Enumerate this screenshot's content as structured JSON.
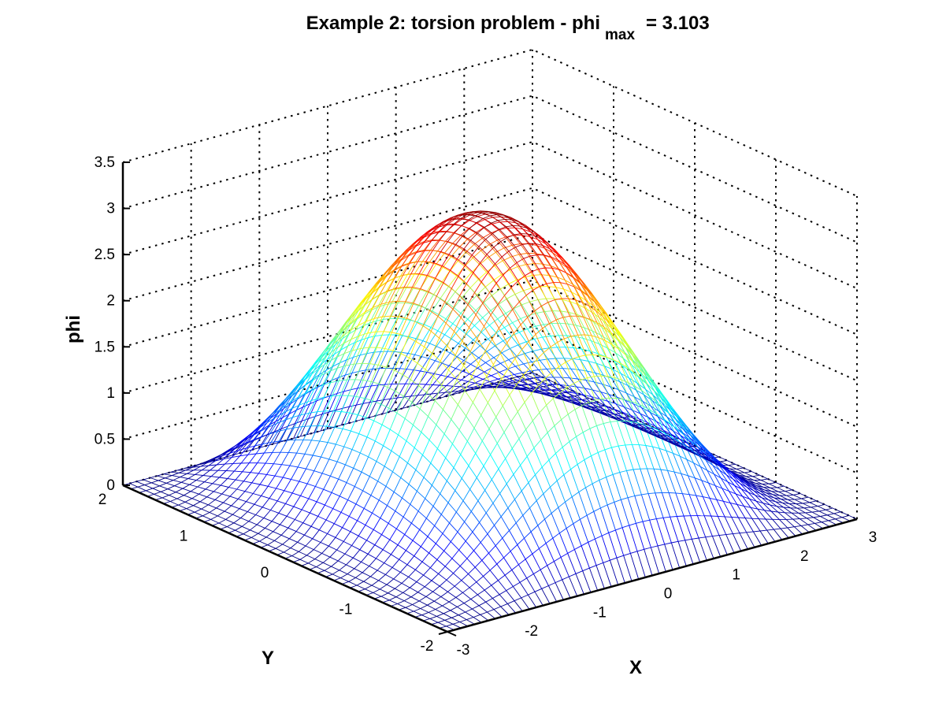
{
  "chart_data": {
    "type": "surface",
    "title": {
      "main": "Example 2: torsion problem - phi",
      "subscript": "max",
      "suffix": "= 3.103"
    },
    "xlabel": "X",
    "ylabel": "Y",
    "zlabel": "phi",
    "xlim": [
      -3,
      3
    ],
    "ylim": [
      -2,
      2
    ],
    "zlim": [
      0,
      3.5
    ],
    "xticks": [
      -3,
      -2,
      -1,
      0,
      1,
      2,
      3
    ],
    "yticks": [
      -2,
      -1,
      0,
      1,
      2
    ],
    "zticks": [
      0,
      0.5,
      1,
      1.5,
      2,
      2.5,
      3,
      3.5
    ],
    "xtick_labels": [
      "-3",
      "-2",
      "-1",
      "0",
      "1",
      "2",
      "3"
    ],
    "ytick_labels": [
      "-2",
      "-1",
      "0",
      "1",
      "2"
    ],
    "ztick_labels": [
      "0",
      "0.5",
      "1",
      "1.5",
      "2",
      "2.5",
      "3",
      "3.5"
    ],
    "grid": true,
    "colormap": "jet",
    "surface": {
      "phi_max": 3.103,
      "x_samples": 61,
      "y_samples": 41
    }
  }
}
